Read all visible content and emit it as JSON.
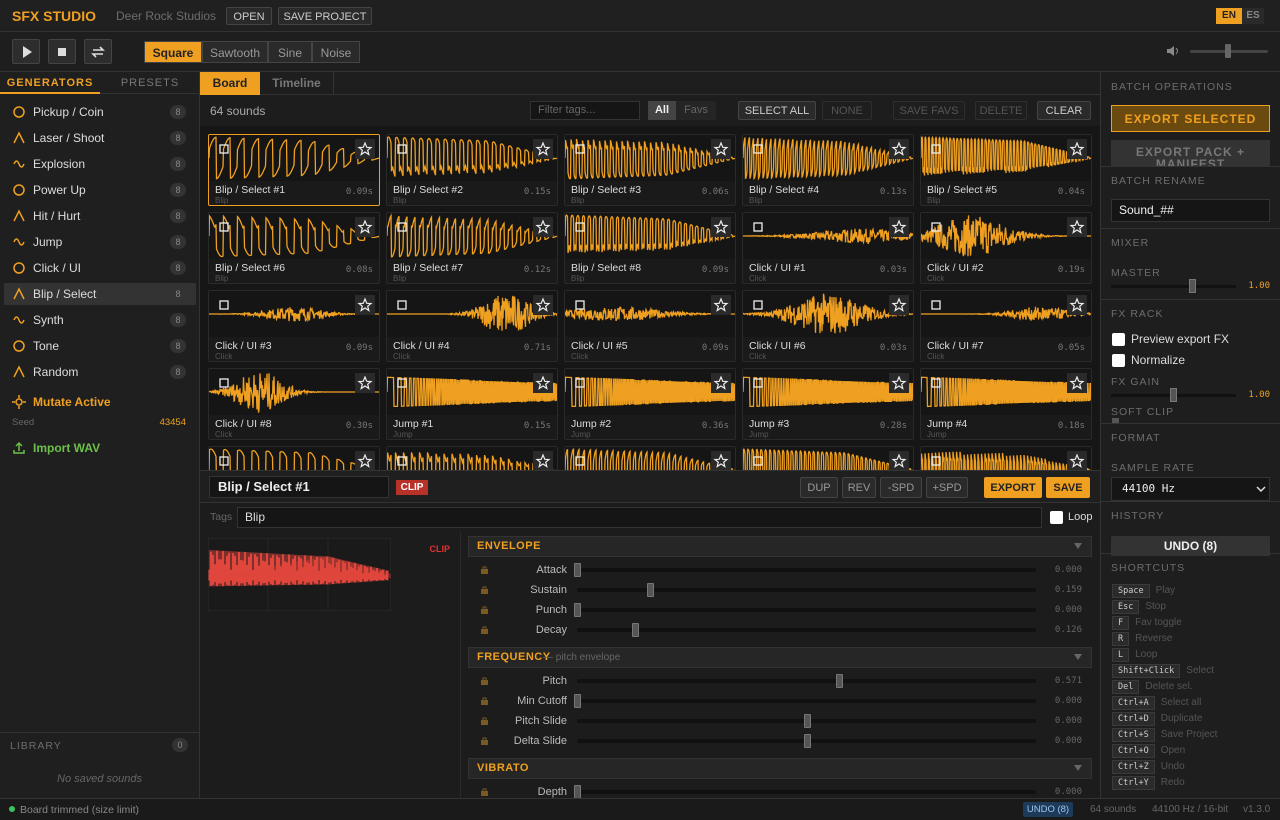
{
  "header": {
    "brand": "SFX STUDIO",
    "studio": "Deer Rock Studios",
    "buttons": [
      "OPEN",
      "SAVE PROJECT"
    ],
    "languages": [
      "EN",
      "ES"
    ]
  },
  "toolbar": {
    "waves": [
      "Square",
      "Sawtooth",
      "Sine",
      "Noise"
    ]
  },
  "sidebar": {
    "tabs": [
      "GENERATORS",
      "PRESETS"
    ],
    "generators": [
      {
        "label": "Pickup / Coin",
        "count": 8
      },
      {
        "label": "Laser / Shoot",
        "count": 8
      },
      {
        "label": "Explosion",
        "count": 8
      },
      {
        "label": "Power Up",
        "count": 8
      },
      {
        "label": "Hit / Hurt",
        "count": 8
      },
      {
        "label": "Jump",
        "count": 8
      },
      {
        "label": "Click / UI",
        "count": 8
      },
      {
        "label": "Blip / Select",
        "count": 8
      },
      {
        "label": "Synth",
        "count": 8
      },
      {
        "label": "Tone",
        "count": 8
      },
      {
        "label": "Random",
        "count": 8
      }
    ],
    "mutate": "Mutate Active",
    "seed_label": "Seed",
    "seed": 43454,
    "import": "Import WAV",
    "library": {
      "title": "LIBRARY",
      "count": 0,
      "empty": "No saved sounds"
    }
  },
  "board": {
    "tabs": [
      "Board",
      "Timeline"
    ],
    "count": "64 sounds",
    "filter_placeholder": "Filter tags...",
    "filters": [
      "All",
      "Favs"
    ],
    "actions": [
      "SELECT ALL",
      "NONE",
      "SAVE FAVS",
      "DELETE",
      "CLEAR"
    ],
    "tiles": [
      {
        "name": "Blip / Select #1",
        "duration": "0.09s",
        "tag": "Blip"
      },
      {
        "name": "Blip / Select #2",
        "duration": "0.15s",
        "tag": "Blip"
      },
      {
        "name": "Blip / Select #3",
        "duration": "0.06s",
        "tag": "Blip"
      },
      {
        "name": "Blip / Select #4",
        "duration": "0.13s",
        "tag": "Blip"
      },
      {
        "name": "Blip / Select #5",
        "duration": "0.04s",
        "tag": "Blip"
      },
      {
        "name": "Blip / Select #6",
        "duration": "0.08s",
        "tag": "Blip"
      },
      {
        "name": "Blip / Select #7",
        "duration": "0.12s",
        "tag": "Blip"
      },
      {
        "name": "Blip / Select #8",
        "duration": "0.09s",
        "tag": "Blip"
      },
      {
        "name": "Click / UI #1",
        "duration": "0.03s",
        "tag": "Click"
      },
      {
        "name": "Click / UI #2",
        "duration": "0.19s",
        "tag": "Click"
      },
      {
        "name": "Click / UI #3",
        "duration": "0.09s",
        "tag": "Click"
      },
      {
        "name": "Click / UI #4",
        "duration": "0.71s",
        "tag": "Click"
      },
      {
        "name": "Click / UI #5",
        "duration": "0.09s",
        "tag": "Click"
      },
      {
        "name": "Click / UI #6",
        "duration": "0.03s",
        "tag": "Click"
      },
      {
        "name": "Click / UI #7",
        "duration": "0.05s",
        "tag": "Click"
      },
      {
        "name": "Click / UI #8",
        "duration": "0.30s",
        "tag": "Click"
      },
      {
        "name": "Jump #1",
        "duration": "0.15s",
        "tag": "Jump"
      },
      {
        "name": "Jump #2",
        "duration": "0.36s",
        "tag": "Jump"
      },
      {
        "name": "Jump #3",
        "duration": "0.28s",
        "tag": "Jump"
      },
      {
        "name": "Jump #4",
        "duration": "0.18s",
        "tag": "Jump"
      }
    ]
  },
  "editor": {
    "name": "Blip / Select #1",
    "clip": "CLIP",
    "buttons": [
      "DUP",
      "REV",
      "-SPD",
      "+SPD",
      "EXPORT",
      "SAVE"
    ],
    "tags_label": "Tags",
    "tags": "Blip",
    "loop": "Loop",
    "preview_clip": "CLIP",
    "sections": [
      {
        "title": "ENVELOPE",
        "params": [
          {
            "name": "Attack",
            "value": 0,
            "label": "0.000"
          },
          {
            "name": "Sustain",
            "value": 0.159,
            "label": "0.159"
          },
          {
            "name": "Punch",
            "value": 0,
            "label": "0.000"
          },
          {
            "name": "Decay",
            "value": 0.126,
            "label": "0.126"
          }
        ]
      },
      {
        "title": "FREQUENCY",
        "subtitle": "— pitch envelope",
        "params": [
          {
            "name": "Pitch",
            "value": 0.571,
            "label": "0.571"
          },
          {
            "name": "Min Cutoff",
            "value": 0,
            "label": "0.000"
          },
          {
            "name": "Pitch Slide",
            "value": 0,
            "label": "0.000",
            "bipolar": true
          },
          {
            "name": "Delta Slide",
            "value": 0,
            "label": "0.000",
            "bipolar": true
          }
        ]
      },
      {
        "title": "VIBRATO",
        "params": [
          {
            "name": "Depth",
            "value": 0,
            "label": "0.000"
          }
        ]
      }
    ]
  },
  "right": {
    "batch": "BATCH OPERATIONS",
    "export_selected": "EXPORT SELECTED",
    "export_pack": "EXPORT PACK + MANIFEST",
    "rename": "BATCH RENAME",
    "rename_value": "Sound_##",
    "mixer": "MIXER",
    "master": "MASTER",
    "master_value": "1.00",
    "fx_rack": "FX RACK",
    "checks": [
      "Preview export FX",
      "Normalize"
    ],
    "fx_gain": "FX GAIN",
    "fx_gain_value": "1.00",
    "soft_clip": "SOFT CLIP",
    "format": "FORMAT",
    "sample_rate": "SAMPLE RATE",
    "sample_rate_value": "44100 Hz",
    "history": "HISTORY",
    "undo": "UNDO (8)",
    "shortcuts_title": "SHORTCUTS",
    "shortcuts": [
      {
        "key": "Space",
        "action": "Play"
      },
      {
        "key": "Esc",
        "action": "Stop"
      },
      {
        "key": "F",
        "action": "Fav toggle"
      },
      {
        "key": "R",
        "action": "Reverse"
      },
      {
        "key": "L",
        "action": "Loop"
      },
      {
        "key": "Shift+Click",
        "action": "Select"
      },
      {
        "key": "Del",
        "action": "Delete sel."
      },
      {
        "key": "Ctrl+A",
        "action": "Select all"
      },
      {
        "key": "Ctrl+D",
        "action": "Duplicate"
      },
      {
        "key": "Ctrl+S",
        "action": "Save Project"
      },
      {
        "key": "Ctrl+O",
        "action": "Open"
      },
      {
        "key": "Ctrl+Z",
        "action": "Undo"
      },
      {
        "key": "Ctrl+Y",
        "action": "Redo"
      }
    ]
  },
  "status": {
    "message": "Board trimmed (size limit)",
    "undo": "UNDO (8)",
    "count": "64 sounds",
    "format": "44100 Hz / 16-bit",
    "version": "v1.3.0"
  }
}
